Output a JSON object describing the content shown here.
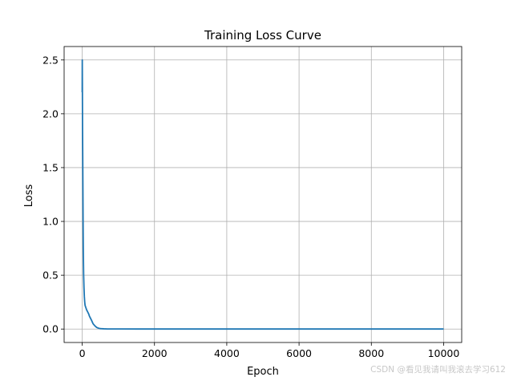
{
  "chart_data": {
    "type": "line",
    "title": "Training Loss Curve",
    "xlabel": "Epoch",
    "ylabel": "Loss",
    "xlim": [
      -500,
      10500
    ],
    "ylim": [
      -0.125,
      2.625
    ],
    "x_ticks": [
      0,
      2000,
      4000,
      6000,
      8000,
      10000
    ],
    "y_ticks": [
      0.0,
      0.5,
      1.0,
      1.5,
      2.0,
      2.5
    ],
    "x_tick_labels": [
      "0",
      "2000",
      "4000",
      "6000",
      "8000",
      "10000"
    ],
    "y_tick_labels": [
      "0.0",
      "0.5",
      "1.0",
      "1.5",
      "2.0",
      "2.5"
    ],
    "grid": true,
    "legend": "none",
    "line_color": "#1f77b4",
    "series": [
      {
        "x": [
          0,
          2,
          5,
          8,
          10,
          15,
          20,
          25,
          30,
          40,
          50,
          60,
          70,
          80,
          100,
          120,
          150,
          180,
          200,
          230,
          260,
          300,
          350,
          400,
          450,
          500,
          600,
          700,
          800,
          1000,
          1500,
          2000,
          3000,
          4000,
          5000,
          6000,
          7000,
          8000,
          9000,
          10000
        ],
        "y": [
          2.2,
          2.5,
          2.3,
          2.0,
          1.85,
          1.6,
          1.3,
          1.0,
          0.75,
          0.5,
          0.38,
          0.3,
          0.25,
          0.22,
          0.2,
          0.18,
          0.16,
          0.14,
          0.12,
          0.1,
          0.08,
          0.05,
          0.03,
          0.015,
          0.008,
          0.004,
          0.002,
          0.001,
          0.0008,
          0.0005,
          0.0004,
          0.0003,
          0.0003,
          0.0002,
          0.0002,
          0.0002,
          0.0002,
          0.0002,
          0.0002,
          0.0001
        ]
      }
    ]
  },
  "watermark": "CSDN @看见我请叫我滚去学习612"
}
